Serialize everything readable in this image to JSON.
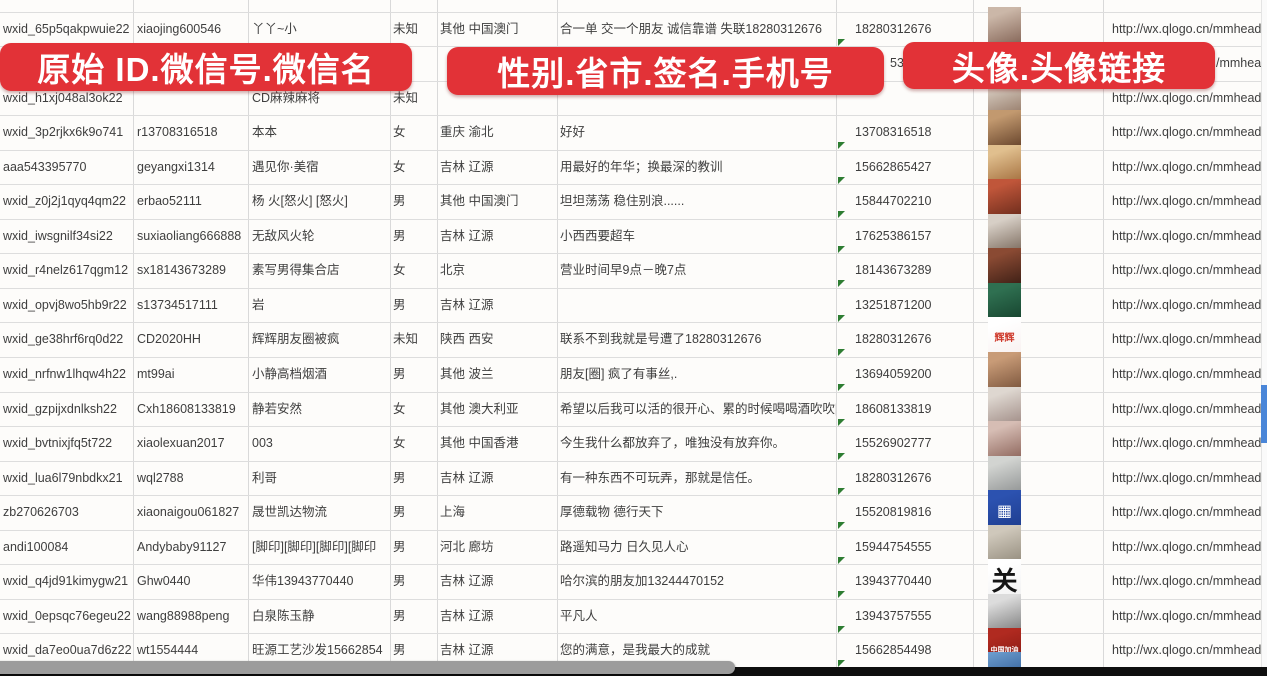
{
  "overlays": {
    "banner1": "原始 ID.微信号.微信名",
    "banner2": "性别.省市.签名.手机号",
    "banner3": "头像.头像链接"
  },
  "colors": {
    "banner_bg": "#e23237",
    "banner_text": "#ffffff",
    "error_triangle_green": "#2e7d32",
    "vertical_scroll_thumb_blue": "#4a86d8"
  },
  "rows": [
    {
      "id": "wxid_65p5qakpwuie22",
      "wechat_no": "xiaojing600546",
      "name": "丫丫~小",
      "gender": "未知",
      "region": "其他 中国澳门",
      "signature": "合一单 交一个朋友 诚信靠谱 失联18280312676",
      "phone": "18280312676",
      "url": "http://wx.qlogo.cn/mmhead",
      "avatar": {
        "desc": "woman-selfie",
        "c1": "#cbb7a8",
        "c2": "#79584a",
        "label": ""
      }
    },
    {
      "phone_fragment": "5386",
      "url_fragment": "/mmhead"
    },
    {
      "id": "wxid_h1xj048al3ok22",
      "wechat_no": "",
      "name": "CD麻辣麻将",
      "gender": "未知",
      "region": "",
      "signature": "",
      "phone": "",
      "url": "http://wx.qlogo.cn/mmhead",
      "avatar": {
        "desc": "woman-selfie",
        "c1": "#d9cfc4",
        "c2": "#8c6f5c",
        "label": ""
      }
    },
    {
      "id": "wxid_3p2rjkx6k9o741",
      "wechat_no": "r13708316518",
      "name": "本本",
      "gender": "女",
      "region": "重庆 渝北",
      "signature": "好好",
      "phone": "13708316518",
      "url": "http://wx.qlogo.cn/mmhead",
      "avatar": {
        "desc": "woman-long-hair",
        "c1": "#c2996f",
        "c2": "#57351f",
        "label": ""
      }
    },
    {
      "id": "aaa543395770",
      "wechat_no": "geyangxi1314",
      "name": "遇见你·美宿",
      "gender": "女",
      "region": "吉林 辽源",
      "signature": "用最好的年华；换最深的教训",
      "phone": "15662865427",
      "url": "http://wx.qlogo.cn/mmhead",
      "avatar": {
        "desc": "warm-figure-trees",
        "c1": "#e0bf8e",
        "c2": "#9a6231",
        "label": ""
      }
    },
    {
      "id": "wxid_z0j2j1qyq4qm22",
      "wechat_no": "erbao52111",
      "name": "杨 火[怒火] [怒火]",
      "gender": "男",
      "region": "其他 中国澳门",
      "signature": "坦坦荡荡 稳住别浪......",
      "phone": "15844702210",
      "url": "http://wx.qlogo.cn/mmhead",
      "avatar": {
        "desc": "figurines-group",
        "c1": "#c0563a",
        "c2": "#5f2517",
        "label": ""
      }
    },
    {
      "id": "wxid_iwsgnilf34si22",
      "wechat_no": "suxiaoliang666888",
      "name": "无敌风火轮",
      "gender": "男",
      "region": "吉林 辽源",
      "signature": "小西西要超车",
      "phone": "17625386157",
      "url": "http://wx.qlogo.cn/mmhead",
      "avatar": {
        "desc": "person-in-car",
        "c1": "#d7cfc6",
        "c2": "#6e5c4e",
        "label": ""
      }
    },
    {
      "id": "wxid_r4nelz617qgm12",
      "wechat_no": "sx18143673289",
      "name": "素写男得集合店",
      "gender": "女",
      "region": "北京",
      "signature": "营业时间早9点－晚7点",
      "phone": "18143673289",
      "url": "http://wx.qlogo.cn/mmhead",
      "avatar": {
        "desc": "storefront-dark-red",
        "c1": "#8a4a33",
        "c2": "#2f1710",
        "label": ""
      }
    },
    {
      "id": "wxid_opvj8wo5hb9r22",
      "wechat_no": "s13734517111",
      "name": "岩",
      "gender": "男",
      "region": "吉林 辽源",
      "signature": "",
      "phone": "13251871200",
      "url": "http://wx.qlogo.cn/mmhead",
      "avatar": {
        "desc": "green-road-sign",
        "c1": "#2f7051",
        "c2": "#123b28",
        "label": ""
      }
    },
    {
      "id": "wxid_ge38hrf6rq0d22",
      "wechat_no": "CD2020HH",
      "name": "辉辉朋友圈被疯",
      "gender": "未知",
      "region": "陕西 西安",
      "signature": "联系不到我就是号遭了18280312676",
      "phone": "18280312676",
      "url": "http://wx.qlogo.cn/mmhead",
      "avatar": {
        "desc": "huihui-text-card",
        "c1": "#ffffff",
        "c2": "#f7efee",
        "label": "辉辉",
        "label_color": "#cf3a2c",
        "label_size": 10
      }
    },
    {
      "id": "wxid_nrfnw1lhqw4h22",
      "wechat_no": "mt99ai",
      "name": "小静高档烟酒",
      "gender": "男",
      "region": "其他 波兰",
      "signature": "朋友[圈] 疯了有事丝,.",
      "phone": "13694059200",
      "url": "http://wx.qlogo.cn/mmhead",
      "avatar": {
        "desc": "woman-sunglasses",
        "c1": "#c89b77",
        "c2": "#6f4a33",
        "label": ""
      }
    },
    {
      "id": "wxid_gzpijxdnlksh22",
      "wechat_no": "Cxh18608133819",
      "name": "静若安然",
      "gender": "女",
      "region": "其他 澳大利亚",
      "signature": "希望以后我可以活的很开心、累的时候喝喝酒吹吹[",
      "phone": "18608133819",
      "url": "http://wx.qlogo.cn/mmhead",
      "avatar": {
        "desc": "woman-white-dress",
        "c1": "#ded7d0",
        "c2": "#96807a",
        "label": ""
      }
    },
    {
      "id": "wxid_bvtnixjfq5t722",
      "wechat_no": "xiaolexuan2017",
      "name": "003",
      "gender": "女",
      "region": "其他 中国香港",
      "signature": "今生我什么都放弃了，唯独没有放弃你。",
      "phone": "15526902777",
      "url": "http://wx.qlogo.cn/mmhead",
      "avatar": {
        "desc": "woman-portrait",
        "c1": "#d6bdb4",
        "c2": "#82584e",
        "label": ""
      }
    },
    {
      "id": "wxid_lua6l79nbdkx21",
      "wechat_no": "wql2788",
      "name": "利哥",
      "gender": "男",
      "region": "吉林 辽源",
      "signature": "有一种东西不可玩弄，那就是信任。",
      "phone": "18280312676",
      "url": "http://wx.qlogo.cn/mmhead",
      "avatar": {
        "desc": "person-outdoors-gray",
        "c1": "#d2d4d1",
        "c2": "#86898a",
        "label": ""
      }
    },
    {
      "id": "zb270626703",
      "wechat_no": "xiaonaigou061827",
      "name": "晟世凯达物流",
      "gender": "男",
      "region": "上海",
      "signature": "厚德载物 德行天下",
      "phone": "15520819816",
      "url": "http://wx.qlogo.cn/mmhead",
      "avatar": {
        "desc": "blue-qr-code-card",
        "c1": "#2c52b0",
        "c2": "#1c3a8a",
        "label": "▦",
        "label_color": "#ffffff",
        "label_size": 16
      }
    },
    {
      "id": "andi100084",
      "wechat_no": "Andybaby91127",
      "name": "[脚印][脚印][脚印][脚印",
      "gender": "男",
      "region": "河北 廊坊",
      "signature": "路遥知马力 日久见人心",
      "phone": "15944754555",
      "url": "http://wx.qlogo.cn/mmhead",
      "avatar": {
        "desc": "people-by-wall",
        "c1": "#cfc8bb",
        "c2": "#8b8374",
        "label": ""
      }
    },
    {
      "id": "wxid_q4jd91kimygw21",
      "wechat_no": "Ghw0440",
      "name": "华伟13943770440",
      "gender": "男",
      "region": "吉林 辽源",
      "signature": "哈尔滨的朋友加13244470152",
      "phone": "13943770440",
      "url": "http://wx.qlogo.cn/mmhead",
      "avatar": {
        "desc": "calligraphy-guan",
        "c1": "#ffffff",
        "c2": "#f0f0f0",
        "label": "关",
        "label_color": "#151515",
        "label_size": 26
      }
    },
    {
      "id": "wxid_0epsqc76egeu22",
      "wechat_no": "wang88988peng",
      "name": "白泉陈玉静",
      "gender": "男",
      "region": "吉林 辽源",
      "signature": "平凡人",
      "phone": "13943757555",
      "url": "http://wx.qlogo.cn/mmhead",
      "avatar": {
        "desc": "person-bw-photo",
        "c1": "#dcdcdc",
        "c2": "#6f6f6f",
        "label": ""
      }
    },
    {
      "id": "wxid_da7eo0ua7d6z22",
      "wechat_no": "wt1554444",
      "name": "旺源工艺沙发15662854",
      "gender": "男",
      "region": "吉林 辽源",
      "signature": "您的满意，是我最大的成就",
      "phone": "15662854498",
      "url": "http://wx.qlogo.cn/mmhead",
      "avatar": {
        "desc": "china-jiayou-red",
        "c1": "#b02a20",
        "c2": "#7a150f",
        "label": "中国加油",
        "label_color": "#ffffff",
        "label_size": 7
      }
    },
    {
      "partial": true,
      "avatar": {
        "desc": "blue-profile-partial",
        "c1": "#6f9fd0",
        "c2": "#35629b",
        "label": ""
      }
    }
  ]
}
